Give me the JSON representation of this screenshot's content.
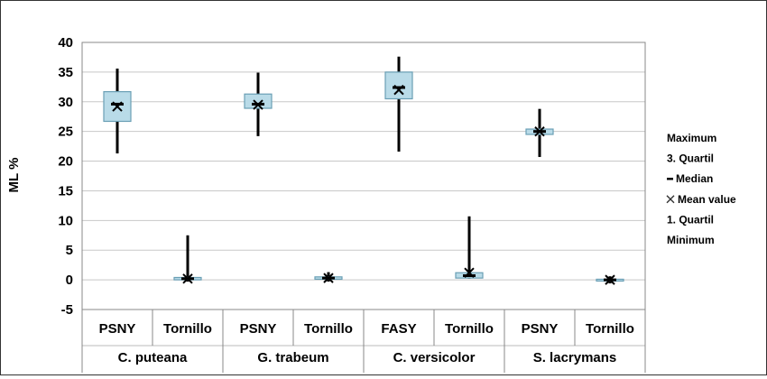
{
  "chart_data": {
    "type": "box",
    "ylabel": "ML %",
    "ylim": [
      -5,
      40
    ],
    "yticks": [
      -5,
      0,
      5,
      10,
      15,
      20,
      25,
      30,
      35,
      40
    ],
    "grid": true,
    "legend_position": "right",
    "groups": [
      {
        "name": "C. puteana",
        "categories": [
          "PSNY",
          "Tornillo"
        ]
      },
      {
        "name": "G. trabeum",
        "categories": [
          "PSNY",
          "Tornillo"
        ]
      },
      {
        "name": "C. versicolor",
        "categories": [
          "FASY",
          "Tornillo"
        ]
      },
      {
        "name": "S. lacrymans",
        "categories": [
          "PSNY",
          "Tornillo"
        ]
      }
    ],
    "boxes": [
      {
        "group": "C. puteana",
        "category": "PSNY",
        "min": 21.3,
        "q1": 26.7,
        "median": 29.6,
        "mean": 29.2,
        "q3": 31.7,
        "max": 35.6
      },
      {
        "group": "C. puteana",
        "category": "Tornillo",
        "min": -0.3,
        "q1": 0.0,
        "median": 0.2,
        "mean": 0.2,
        "q3": 0.4,
        "max": 7.5
      },
      {
        "group": "G. trabeum",
        "category": "PSNY",
        "min": 24.2,
        "q1": 28.9,
        "median": 29.6,
        "mean": 29.5,
        "q3": 31.3,
        "max": 34.9
      },
      {
        "group": "G. trabeum",
        "category": "Tornillo",
        "min": -0.3,
        "q1": 0.1,
        "median": 0.3,
        "mean": 0.3,
        "q3": 0.5,
        "max": 1.3
      },
      {
        "group": "C. versicolor",
        "category": "FASY",
        "min": 21.6,
        "q1": 30.5,
        "median": 32.4,
        "mean": 32.0,
        "q3": 35.0,
        "max": 37.6
      },
      {
        "group": "C. versicolor",
        "category": "Tornillo",
        "min": 0.2,
        "q1": 0.3,
        "median": 0.7,
        "mean": 1.2,
        "q3": 1.2,
        "max": 10.7
      },
      {
        "group": "S. lacrymans",
        "category": "PSNY",
        "min": 20.7,
        "q1": 24.5,
        "median": 25.0,
        "mean": 25.0,
        "q3": 25.4,
        "max": 28.8
      },
      {
        "group": "S. lacrymans",
        "category": "Tornillo",
        "min": -0.6,
        "q1": -0.1,
        "median": 0.0,
        "mean": 0.0,
        "q3": 0.1,
        "max": 0.6
      }
    ],
    "legend": [
      "Maximum",
      "3. Quartil",
      "Median",
      "Mean value",
      "1. Quartil",
      "Minimum"
    ],
    "colors": {
      "box_fill": "#b9dbe8",
      "box_stroke": "#6a9fb5",
      "whisker": "#000000",
      "grid": "#c8c8c8"
    }
  }
}
